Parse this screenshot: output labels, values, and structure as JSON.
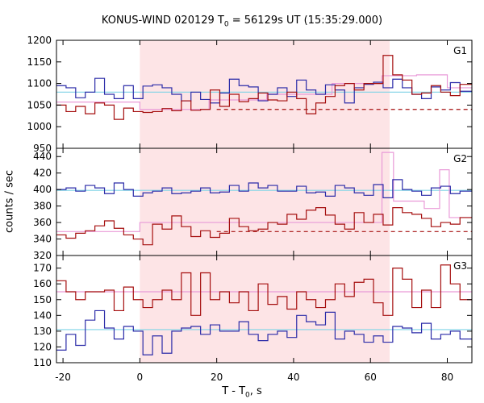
{
  "chart_data": {
    "type": "line",
    "title": {
      "prefix": "KONUS-WIND 020129 T",
      "sub": "0",
      "suffix": " = 56129s UT (15:35:29.000)"
    },
    "xlabel": {
      "prefix": "T - T",
      "sub": "0",
      "suffix": ", s"
    },
    "ylabel": "counts / sec",
    "xlim": [
      -21.7,
      86.4
    ],
    "x_ticks": [
      -20,
      0,
      20,
      40,
      60,
      80
    ],
    "highlight_interval": [
      0,
      65
    ],
    "colors": {
      "blue": "#2b2ba8",
      "red": "#a50f0f",
      "cyan": "#7fd3e6",
      "pink": "#e99ad8",
      "highlight": "#fde4e6"
    },
    "bin_edges": [
      -21.7,
      -19.2,
      -16.7,
      -14.2,
      -11.7,
      -9.2,
      -6.7,
      -4.2,
      -1.7,
      0.8,
      3.3,
      5.8,
      8.3,
      10.8,
      13.3,
      15.8,
      18.3,
      20.8,
      23.3,
      25.8,
      28.3,
      30.8,
      33.3,
      35.8,
      38.3,
      40.8,
      43.3,
      45.8,
      48.3,
      50.8,
      53.3,
      55.8,
      58.3,
      60.8,
      63.3,
      65.8,
      68.3,
      70.8,
      73.3,
      75.8,
      78.3,
      80.8,
      83.3,
      86.4
    ],
    "panels": [
      {
        "label": "G1",
        "ylim": [
          950,
          1200
        ],
        "y_ticks": [
          950,
          1000,
          1050,
          1100,
          1150,
          1200
        ],
        "series": [
          {
            "color": "blue",
            "values": [
              1095,
              1090,
              1067,
              1080,
              1112,
              1075,
              1065,
              1095,
              1065,
              1094,
              1097,
              1090,
              1075,
              1060,
              1080,
              1063,
              1055,
              1078,
              1110,
              1095,
              1092,
              1060,
              1075,
              1090,
              1070,
              1108,
              1085,
              1075,
              1097,
              1085,
              1055,
              1090,
              1098,
              1103,
              1090,
              1110,
              1090,
              1075,
              1065,
              1092,
              1085,
              1102,
              1082
            ]
          },
          {
            "color": "red",
            "values": [
              1050,
              1035,
              1047,
              1030,
              1055,
              1050,
              1017,
              1043,
              1035,
              1033,
              1035,
              1042,
              1037,
              1060,
              1038,
              1040,
              1085,
              1047,
              1075,
              1058,
              1065,
              1078,
              1062,
              1060,
              1080,
              1065,
              1030,
              1055,
              1070,
              1095,
              1100,
              1085,
              1100,
              1100,
              1165,
              1120,
              1108,
              1075,
              1078,
              1095,
              1080,
              1072,
              1098
            ]
          }
        ],
        "background_lines": [
          {
            "color": "cyan",
            "style": "solid",
            "value": 1080
          },
          {
            "color": "red",
            "style": "dashed",
            "value": 1040
          }
        ],
        "model": [
          {
            "x": [
              -21.7,
              0
            ],
            "y": 1057
          },
          {
            "x": [
              0,
              18
            ],
            "y": 1040
          },
          {
            "x": [
              18,
              33
            ],
            "y": 1062
          },
          {
            "x": [
              33,
              50
            ],
            "y": 1075
          },
          {
            "x": [
              50,
              63
            ],
            "y": 1100
          },
          {
            "x": [
              63,
              72
            ],
            "y": 1118
          },
          {
            "x": [
              72,
              80
            ],
            "y": 1120
          },
          {
            "x": [
              80,
              86.4
            ],
            "y": 1090
          }
        ]
      },
      {
        "label": "G2",
        "ylim": [
          320,
          450
        ],
        "y_ticks": [
          320,
          340,
          360,
          380,
          400,
          420,
          440
        ],
        "series": [
          {
            "color": "blue",
            "values": [
              400,
              402,
              398,
              405,
              402,
              395,
              408,
              400,
              392,
              396,
              398,
              402,
              395,
              396,
              398,
              402,
              396,
              397,
              405,
              398,
              408,
              402,
              405,
              398,
              398,
              404,
              396,
              397,
              392,
              405,
              402,
              396,
              393,
              406,
              390,
              412,
              400,
              398,
              393,
              402,
              404,
              395,
              398
            ]
          },
          {
            "color": "red",
            "values": [
              345,
              341,
              347,
              350,
              356,
              362,
              353,
              345,
              340,
              333,
              358,
              352,
              368,
              355,
              343,
              350,
              342,
              347,
              365,
              355,
              350,
              352,
              360,
              358,
              370,
              364,
              375,
              378,
              369,
              358,
              352,
              372,
              360,
              370,
              357,
              378,
              372,
              370,
              365,
              355,
              360,
              358,
              366
            ]
          }
        ],
        "background_lines": [
          {
            "color": "cyan",
            "style": "solid",
            "value": 399
          },
          {
            "color": "red",
            "style": "dashed",
            "value": 349
          }
        ],
        "model": [
          {
            "x": [
              -21.7,
              0
            ],
            "y": 349
          },
          {
            "x": [
              0,
              40
            ],
            "y": 360
          },
          {
            "x": [
              40,
              63
            ],
            "y": 360
          },
          {
            "x": [
              63,
              66
            ],
            "y": 445
          },
          {
            "x": [
              66,
              74
            ],
            "y": 386
          },
          {
            "x": [
              74,
              78
            ],
            "y": 377
          },
          {
            "x": [
              78,
              80.5
            ],
            "y": 424
          },
          {
            "x": [
              80.5,
              86.4
            ],
            "y": 366
          }
        ]
      },
      {
        "label": "G3",
        "ylim": [
          110,
          178
        ],
        "y_ticks": [
          110,
          120,
          130,
          140,
          150,
          160,
          170
        ],
        "series": [
          {
            "color": "blue",
            "values": [
              118,
              128,
              121,
              137,
              143,
              132,
              125,
              133,
              130,
              115,
              127,
              116,
              130,
              132,
              133,
              128,
              134,
              130,
              130,
              136,
              128,
              124,
              128,
              130,
              126,
              140,
              136,
              134,
              142,
              125,
              130,
              128,
              123,
              127,
              123,
              133,
              132,
              129,
              135,
              125,
              128,
              130,
              125
            ]
          },
          {
            "color": "red",
            "values": [
              162,
              155,
              150,
              155,
              155,
              156,
              143,
              158,
              150,
              145,
              150,
              156,
              150,
              167,
              140,
              167,
              150,
              155,
              148,
              155,
              143,
              160,
              147,
              152,
              144,
              155,
              150,
              145,
              150,
              160,
              152,
              161,
              163,
              148,
              140,
              170,
              163,
              145,
              156,
              145,
              172,
              160,
              150
            ]
          }
        ],
        "background_lines": [
          {
            "color": "cyan",
            "style": "solid",
            "value": 131
          }
        ],
        "model": [
          {
            "x": [
              -21.7,
              86.4
            ],
            "y": 155
          }
        ]
      }
    ]
  }
}
